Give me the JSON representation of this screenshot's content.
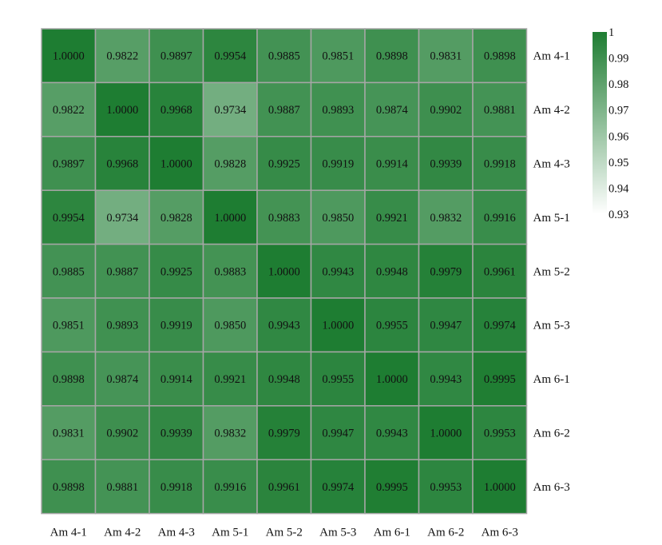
{
  "chart_data": {
    "type": "heatmap",
    "title": "",
    "row_labels": [
      "Am 4-1",
      "Am 4-2",
      "Am 4-3",
      "Am 5-1",
      "Am 5-2",
      "Am 5-3",
      "Am 6-1",
      "Am 6-2",
      "Am 6-3"
    ],
    "col_labels": [
      "Am 4-1",
      "Am 4-2",
      "Am 4-3",
      "Am 5-1",
      "Am 5-2",
      "Am 5-3",
      "Am 6-1",
      "Am 6-2",
      "Am 6-3"
    ],
    "cell_text": [
      [
        "1.0000",
        "0.9822",
        "0.9897",
        "0.9954",
        "0.9885",
        "0.9851",
        "0.9898",
        "0.9831",
        "0.9898"
      ],
      [
        "0.9822",
        "1.0000",
        "0.9968",
        "0.9734",
        "0.9887",
        "0.9893",
        "0.9874",
        "0.9902",
        "0.9881"
      ],
      [
        "0.9897",
        "0.9968",
        "1.0000",
        "0.9828",
        "0.9925",
        "0.9919",
        "0.9914",
        "0.9939",
        "0.9918"
      ],
      [
        "0.9954",
        "0.9734",
        "0.9828",
        "1.0000",
        "0.9883",
        "0.9850",
        "0.9921",
        "0.9832",
        "0.9916"
      ],
      [
        "0.9885",
        "0.9887",
        "0.9925",
        "0.9883",
        "1.0000",
        "0.9943",
        "0.9948",
        "0.9979",
        "0.9961"
      ],
      [
        "0.9851",
        "0.9893",
        "0.9919",
        "0.9850",
        "0.9943",
        "1.0000",
        "0.9955",
        "0.9947",
        "0.9974"
      ],
      [
        "0.9898",
        "0.9874",
        "0.9914",
        "0.9921",
        "0.9948",
        "0.9955",
        "1.0000",
        "0.9943",
        "0.9995"
      ],
      [
        "0.9831",
        "0.9902",
        "0.9939",
        "0.9832",
        "0.9979",
        "0.9947",
        "0.9943",
        "1.0000",
        "0.9953"
      ],
      [
        "0.9898",
        "0.9881",
        "0.9918",
        "0.9916",
        "0.9961",
        "0.9974",
        "0.9995",
        "0.9953",
        "1.0000"
      ]
    ],
    "color_scale": {
      "min": 0.93,
      "max": 1,
      "low_color": "#ffffff",
      "high_color": "#1e7d32",
      "ticks": [
        "1",
        "0.99",
        "0.98",
        "0.97",
        "0.96",
        "0.95",
        "0.94",
        "0.93"
      ]
    },
    "grid_line_color": "#a6a6a6",
    "row_labels_position": "right",
    "col_labels_position": "bottom",
    "legend_placement": "top-right"
  }
}
